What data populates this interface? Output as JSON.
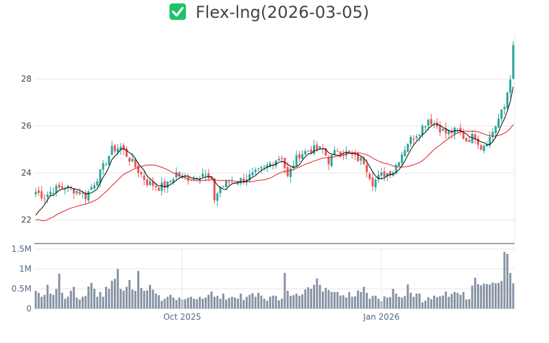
{
  "chart_data": {
    "type": "candlestick",
    "title": "Flex-lng(2026-03-05)",
    "title_icon": "check-box-icon",
    "colors": {
      "up": "#26a69a",
      "down": "#ef5350",
      "ma_short": "#000000",
      "ma_long": "#e41a1c",
      "volume": "#8592a3",
      "icon_bg": "#1fc16b",
      "grid": "#e6e6e6",
      "axis": "#444444"
    },
    "price_axis": {
      "range": [
        21,
        29.9
      ],
      "ticks": [
        22,
        24,
        26,
        28
      ],
      "tick_labels": [
        "22",
        "24",
        "26",
        "28"
      ]
    },
    "volume_axis": {
      "range": [
        0,
        1500000
      ],
      "ticks": [
        0,
        500000,
        1000000,
        1500000
      ],
      "tick_labels": [
        "0",
        "0.5M",
        "1M",
        "1.5M"
      ]
    },
    "x_axis": {
      "tick_labels": [
        "Oct 2025",
        "Jan 2026"
      ],
      "tick_indices": [
        50,
        118
      ],
      "num_bars": 164
    },
    "series": [
      {
        "name": "",
        "kind": "ohlc",
        "anchors": [
          [
            0,
            23.2
          ],
          [
            3,
            23.0
          ],
          [
            6,
            23.3
          ],
          [
            10,
            23.4
          ],
          [
            15,
            23.2
          ],
          [
            17,
            23.0
          ],
          [
            22,
            24.0
          ],
          [
            26,
            25.0
          ],
          [
            29,
            25.1
          ],
          [
            32,
            24.6
          ],
          [
            35,
            24.1
          ],
          [
            38,
            23.6
          ],
          [
            42,
            23.4
          ],
          [
            45,
            23.5
          ],
          [
            48,
            24.0
          ],
          [
            50,
            23.8
          ],
          [
            54,
            23.8
          ],
          [
            57,
            24.0
          ],
          [
            60,
            23.6
          ],
          [
            61,
            22.9
          ],
          [
            63,
            23.4
          ],
          [
            66,
            23.6
          ],
          [
            70,
            23.7
          ],
          [
            74,
            23.9
          ],
          [
            78,
            24.2
          ],
          [
            82,
            24.6
          ],
          [
            84,
            24.7
          ],
          [
            86,
            23.8
          ],
          [
            88,
            24.4
          ],
          [
            90,
            24.8
          ],
          [
            94,
            25.0
          ],
          [
            98,
            25.0
          ],
          [
            100,
            24.5
          ],
          [
            103,
            25.0
          ],
          [
            107,
            24.8
          ],
          [
            110,
            24.6
          ],
          [
            112,
            24.5
          ],
          [
            115,
            23.6
          ],
          [
            118,
            23.9
          ],
          [
            122,
            24.1
          ],
          [
            124,
            24.6
          ],
          [
            127,
            25.3
          ],
          [
            131,
            25.8
          ],
          [
            134,
            26.3
          ],
          [
            137,
            26.0
          ],
          [
            140,
            25.7
          ],
          [
            144,
            25.8
          ],
          [
            147,
            25.4
          ],
          [
            150,
            25.6
          ],
          [
            152,
            25.1
          ],
          [
            155,
            25.5
          ],
          [
            158,
            26.3
          ],
          [
            160,
            26.8
          ],
          [
            162,
            28.1
          ],
          [
            163,
            29.3
          ]
        ]
      },
      {
        "name": "",
        "kind": "ma_short",
        "window": 5
      },
      {
        "name": "",
        "kind": "ma_long",
        "window": 20
      },
      {
        "name": "",
        "kind": "volume",
        "values": [
          450000,
          400000,
          300000,
          350000,
          600000,
          380000,
          350000,
          500000,
          880000,
          400000,
          250000,
          300000,
          450000,
          550000,
          280000,
          230000,
          300000,
          320000,
          560000,
          650000,
          500000,
          300000,
          420000,
          300000,
          550000,
          500000,
          700000,
          750000,
          1000000,
          500000,
          450000,
          550000,
          720000,
          480000,
          450000,
          950000,
          520000,
          450000,
          460000,
          600000,
          480000,
          380000,
          340000,
          200000,
          250000,
          300000,
          350000,
          280000,
          220000,
          280000,
          230000,
          240000,
          280000,
          300000,
          250000,
          240000,
          300000,
          250000,
          280000,
          350000,
          430000,
          300000,
          320000,
          250000,
          380000,
          230000,
          270000,
          300000,
          280000,
          250000,
          380000,
          220000,
          300000,
          350000,
          390000,
          300000,
          400000,
          330000,
          250000,
          200000,
          300000,
          330000,
          320000,
          210000,
          250000,
          900000,
          450000,
          320000,
          340000,
          380000,
          320000,
          360000,
          480000,
          540000,
          500000,
          600000,
          760000,
          600000,
          430000,
          520000,
          470000,
          420000,
          420000,
          420000,
          330000,
          340000,
          280000,
          420000,
          300000,
          310000,
          460000,
          420000,
          550000,
          400000,
          250000,
          320000,
          330000,
          250000,
          190000,
          310000,
          280000,
          290000,
          500000,
          380000,
          300000,
          280000,
          320000,
          610000,
          400000,
          300000,
          380000,
          380000,
          160000,
          200000,
          290000,
          240000,
          330000,
          290000,
          310000,
          330000,
          430000,
          300000,
          370000,
          420000,
          400000,
          350000,
          420000,
          230000,
          240000,
          580000,
          780000,
          620000,
          590000,
          630000,
          620000,
          610000,
          660000,
          640000,
          650000,
          700000,
          1430000,
          1380000,
          900000,
          640000
        ]
      }
    ]
  }
}
